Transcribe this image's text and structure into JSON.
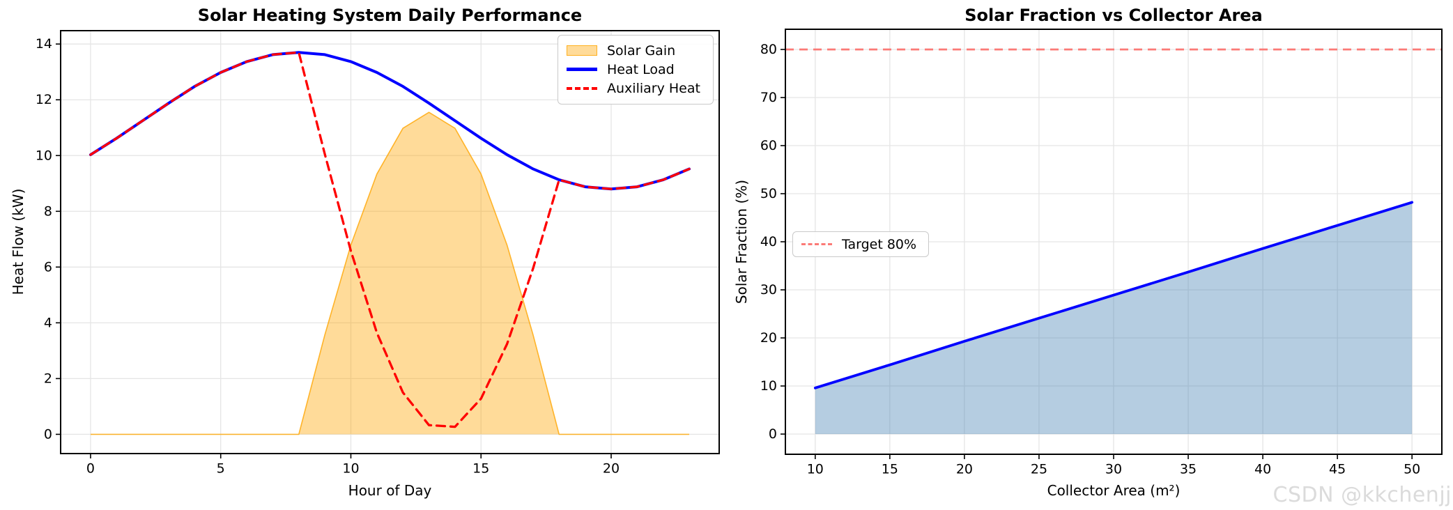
{
  "watermark": "CSDN @kkchenjj",
  "colors": {
    "heat_load": "#0000ff",
    "auxiliary": "#ff0000",
    "solar_gain_fill": "rgba(255,165,0,0.4)",
    "solar_gain_edge": "rgba(255,165,0,0.8)",
    "fraction_line": "#0000ff",
    "fraction_fill": "rgba(70,130,180,0.4)",
    "target_line": "#fb7a76",
    "grid": "#e5e5e5",
    "spine": "#000000"
  },
  "chart_data": [
    {
      "type": "area",
      "title": "Solar Heating System Daily Performance",
      "xlabel": "Hour of Day",
      "ylabel": "Heat Flow (kW)",
      "xlim": [
        -1.15,
        24.15
      ],
      "ylim": [
        -0.69,
        14.48
      ],
      "xticks": [
        0,
        5,
        10,
        15,
        20
      ],
      "yticks": [
        0,
        2,
        4,
        6,
        8,
        10,
        12,
        14
      ],
      "grid": true,
      "legend_position": "upper-right",
      "x": [
        0,
        1,
        2,
        3,
        4,
        5,
        6,
        7,
        8,
        9,
        10,
        11,
        12,
        13,
        14,
        15,
        16,
        17,
        18,
        19,
        20,
        21,
        22,
        23
      ],
      "series": [
        {
          "name": "Solar Gain",
          "kind": "area",
          "values": [
            0,
            0,
            0,
            0,
            0,
            0,
            0,
            0,
            0,
            3.57,
            6.79,
            9.34,
            10.98,
            11.55,
            10.98,
            9.34,
            6.79,
            3.57,
            0,
            0,
            0,
            0,
            0,
            0
          ]
        },
        {
          "name": "Heat Load",
          "kind": "line",
          "values": [
            10.03,
            10.62,
            11.25,
            11.88,
            12.48,
            12.98,
            13.37,
            13.62,
            13.7,
            13.62,
            13.37,
            12.98,
            12.48,
            11.88,
            11.25,
            10.62,
            10.03,
            9.52,
            9.13,
            8.88,
            8.8,
            8.88,
            9.13,
            9.52
          ]
        },
        {
          "name": "Auxiliary Heat",
          "kind": "dashline",
          "values": [
            10.03,
            10.62,
            11.25,
            11.88,
            12.48,
            12.98,
            13.37,
            13.62,
            13.7,
            10.05,
            6.58,
            3.64,
            1.5,
            0.33,
            0.27,
            1.28,
            3.24,
            5.95,
            9.13,
            8.88,
            8.8,
            8.88,
            9.13,
            9.52
          ]
        }
      ]
    },
    {
      "type": "line",
      "title": "Solar Fraction vs Collector Area",
      "xlabel": "Collector Area (m²)",
      "ylabel": "Solar Fraction (%)",
      "xlim": [
        8,
        52
      ],
      "ylim": [
        -4.2,
        84.2
      ],
      "xticks": [
        10,
        15,
        20,
        25,
        30,
        35,
        40,
        45,
        50
      ],
      "yticks": [
        0,
        10,
        20,
        30,
        40,
        50,
        60,
        70,
        80
      ],
      "grid": true,
      "legend_position": "center-left",
      "x": [
        10,
        15,
        20,
        25,
        30,
        35,
        40,
        45,
        50
      ],
      "series": [
        {
          "name": "Solar Fraction",
          "kind": "filled-line",
          "values": [
            9.6,
            14.4,
            19.3,
            24.1,
            28.9,
            33.7,
            38.6,
            43.4,
            48.2
          ]
        },
        {
          "name": "Target 80%",
          "kind": "hline",
          "y": 80
        }
      ]
    }
  ]
}
